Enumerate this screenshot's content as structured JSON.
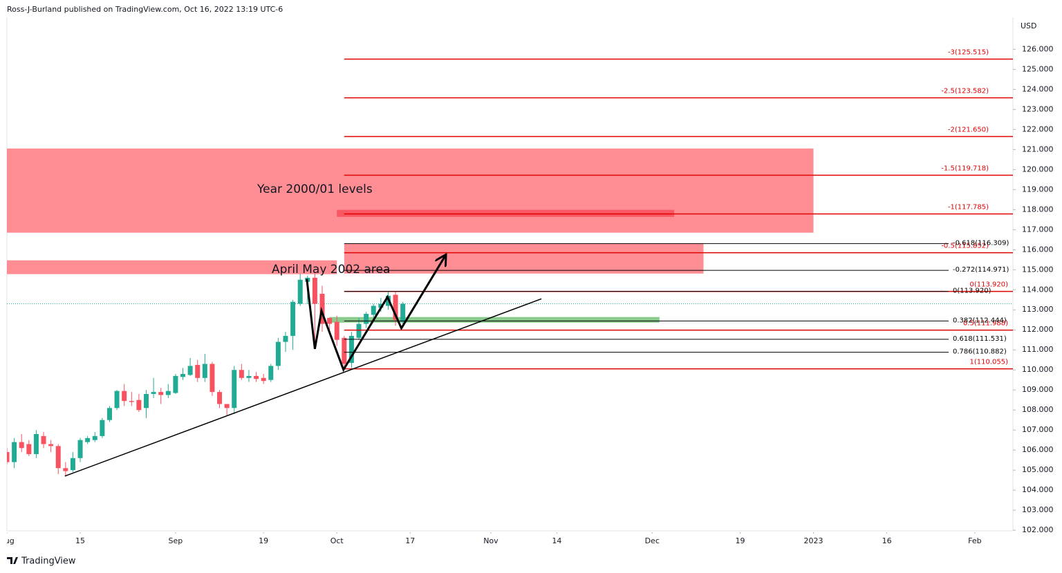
{
  "chart_data": {
    "type": "candlestick",
    "header": "Ross-J-Burland published on TradingView.com, Oct 16, 2022 13:19 UTC-6",
    "currency": "USD",
    "brand": "TradingView",
    "annotations": [
      "Year 2000/01 levels",
      "April May 2002 area"
    ],
    "up_color": "#22ab94",
    "down_color": "#f7525f",
    "categories": [
      null,
      null,
      null,
      null,
      null,
      null,
      null,
      null,
      null,
      null,
      null,
      null,
      null,
      null,
      null,
      null,
      null,
      null,
      null,
      null,
      null,
      null,
      null,
      null,
      null,
      null,
      null,
      null,
      null,
      null,
      null,
      null,
      null,
      null,
      null,
      null,
      null,
      null,
      null,
      null,
      null,
      null,
      null,
      null,
      null,
      null,
      null,
      null,
      null,
      null,
      null,
      null,
      null,
      null,
      null
    ],
    "open": [
      105.9,
      105.4,
      106.4,
      106.3,
      105.8,
      106.7,
      106.3,
      106.2,
      105.1,
      105.0,
      105.6,
      106.4,
      106.5,
      106.7,
      107.5,
      108.1,
      108.95,
      108.45,
      108.5,
      108.1,
      108.8,
      108.9,
      108.75,
      108.85,
      109.65,
      109.75,
      110.25,
      109.6,
      110.3,
      108.9,
      108.3,
      108.1,
      110.0,
      109.6,
      109.7,
      109.6,
      109.5,
      110.2,
      111.4,
      111.7,
      113.3,
      114.4,
      114.6,
      113.8,
      112.6,
      112.4,
      111.6,
      110.35,
      111.6,
      112.3,
      112.75,
      113.1,
      113.2,
      113.75,
      112.4
    ],
    "high": [
      106.1,
      106.6,
      106.8,
      106.5,
      107.0,
      106.9,
      106.5,
      106.3,
      105.4,
      105.9,
      106.6,
      106.7,
      106.9,
      107.6,
      108.2,
      109.0,
      109.3,
      108.9,
      108.8,
      109.0,
      109.6,
      109.1,
      109.3,
      109.8,
      110.1,
      110.6,
      110.5,
      110.8,
      110.4,
      109.0,
      108.3,
      110.2,
      110.3,
      110.0,
      109.9,
      109.8,
      110.3,
      111.6,
      111.9,
      113.5,
      114.8,
      114.7,
      114.8,
      114.2,
      112.6,
      112.7,
      111.7,
      111.9,
      112.6,
      112.9,
      113.3,
      113.6,
      113.9,
      113.9,
      113.4
    ],
    "low": [
      105.3,
      105.1,
      105.9,
      105.7,
      105.6,
      106.1,
      105.9,
      104.8,
      104.7,
      104.9,
      105.4,
      106.3,
      106.4,
      106.6,
      107.4,
      108.0,
      108.2,
      108.2,
      107.9,
      107.6,
      108.6,
      108.3,
      108.6,
      108.8,
      109.5,
      109.7,
      109.4,
      109.4,
      108.7,
      108.1,
      107.7,
      107.8,
      109.5,
      109.4,
      109.4,
      109.3,
      109.4,
      110.0,
      110.9,
      111.0,
      113.2,
      113.3,
      111.2,
      111.9,
      111.9,
      111.2,
      110.0,
      110.1,
      111.5,
      112.1,
      112.5,
      112.9,
      113.0,
      112.2,
      112.3
    ],
    "close": [
      105.4,
      106.4,
      106.1,
      105.8,
      106.8,
      106.3,
      106.2,
      105.1,
      104.95,
      105.6,
      106.5,
      106.6,
      106.7,
      107.5,
      108.1,
      108.95,
      108.45,
      108.4,
      108.0,
      108.8,
      108.9,
      108.75,
      108.95,
      109.7,
      109.8,
      110.2,
      109.6,
      110.3,
      108.9,
      108.3,
      108.1,
      110.0,
      109.6,
      109.7,
      109.55,
      109.45,
      110.2,
      111.4,
      111.7,
      113.4,
      114.5,
      114.6,
      113.3,
      112.3,
      112.3,
      111.5,
      110.3,
      111.7,
      112.3,
      112.8,
      113.2,
      113.3,
      113.7,
      112.5,
      113.3
    ],
    "price_line": 113.3,
    "xlim": [
      0,
      137.2
    ],
    "ylim": [
      101.97,
      127.6
    ],
    "xticks": [
      {
        "value": 0,
        "label": "Aug"
      },
      {
        "value": 10,
        "label": "15"
      },
      {
        "value": 23,
        "label": "Sep"
      },
      {
        "value": 35,
        "label": "19"
      },
      {
        "value": 45,
        "label": "Oct"
      },
      {
        "value": 55,
        "label": "17"
      },
      {
        "value": 66,
        "label": "Nov"
      },
      {
        "value": 75,
        "label": "14"
      },
      {
        "value": 88,
        "label": "Dec"
      },
      {
        "value": 100,
        "label": "19"
      },
      {
        "value": 110,
        "label": "2023"
      },
      {
        "value": 120,
        "label": "16"
      },
      {
        "value": 132,
        "label": "Feb"
      }
    ],
    "yticks": [
      {
        "value": 102,
        "label": "102.000"
      },
      {
        "value": 103,
        "label": "103.000"
      },
      {
        "value": 104,
        "label": "104.000"
      },
      {
        "value": 105,
        "label": "105.000"
      },
      {
        "value": 106,
        "label": "106.000"
      },
      {
        "value": 107,
        "label": "107.000"
      },
      {
        "value": 108,
        "label": "108.000"
      },
      {
        "value": 109,
        "label": "109.000"
      },
      {
        "value": 110,
        "label": "110.000"
      },
      {
        "value": 111,
        "label": "111.000"
      },
      {
        "value": 112,
        "label": "112.000"
      },
      {
        "value": 113,
        "label": "113.000"
      },
      {
        "value": 114,
        "label": "114.000"
      },
      {
        "value": 115,
        "label": "115.000"
      },
      {
        "value": 116,
        "label": "116.000"
      },
      {
        "value": 117,
        "label": "117.000"
      },
      {
        "value": 118,
        "label": "118.000"
      },
      {
        "value": 119,
        "label": "119.000"
      },
      {
        "value": 120,
        "label": "120.000"
      },
      {
        "value": 121,
        "label": "121.000"
      },
      {
        "value": 122,
        "label": "122.000"
      },
      {
        "value": 123,
        "label": "123.000"
      },
      {
        "value": 124,
        "label": "124.000"
      },
      {
        "value": 125,
        "label": "125.000"
      },
      {
        "value": 126,
        "label": "126.000"
      }
    ],
    "zones": [
      {
        "x": [
          0,
          110
        ],
        "y": [
          116.85,
          121.05
        ],
        "color": "#ff5c66",
        "opacity": 0.7
      },
      {
        "x": [
          0,
          45
        ],
        "y": [
          114.78,
          115.47
        ],
        "color": "#ff5c66",
        "opacity": 0.7
      },
      {
        "x": [
          46,
          95
        ],
        "y": [
          114.81,
          116.3
        ],
        "color": "#ff5c66",
        "opacity": 0.7
      },
      {
        "x": [
          45,
          91
        ],
        "y": [
          117.64,
          117.99
        ],
        "color": "#f23645",
        "opacity": 0.6
      },
      {
        "x": [
          44,
          89
        ],
        "y": [
          112.36,
          112.64
        ],
        "color": "#4caf50",
        "opacity": 0.65
      }
    ],
    "fib_levels": [
      {
        "value": 125.515,
        "label": "-3(125.515)",
        "color": "#e00000"
      },
      {
        "value": 123.582,
        "label": "-2.5(123.582)",
        "color": "#e00000"
      },
      {
        "value": 121.65,
        "label": "-2(121.650)",
        "color": "#e00000"
      },
      {
        "value": 119.718,
        "label": "-1.5(119.718)",
        "color": "#e00000"
      },
      {
        "value": 117.785,
        "label": "-1(117.785)",
        "color": "#e00000"
      },
      {
        "value": 115.852,
        "label": "-0.5(115.852)",
        "color": "#e00000"
      },
      {
        "value": 113.92,
        "label": "0(113.920)",
        "color": "#e00000"
      },
      {
        "value": 111.988,
        "label": "0.5(111.988)",
        "color": "#e00000"
      },
      {
        "value": 110.055,
        "label": "1(110.055)",
        "color": "#e00000"
      },
      {
        "value": 116.309,
        "label": "-0.618(116.309)",
        "color": "#000000"
      },
      {
        "value": 114.971,
        "label": "-0.272(114.971)",
        "color": "#000000"
      },
      {
        "value": 113.92,
        "label": "0(113.920)",
        "color": "#000000"
      },
      {
        "value": 112.444,
        "label": "0.382(112.444)",
        "color": "#000000"
      },
      {
        "value": 111.531,
        "label": "0.618(111.531)",
        "color": "#000000"
      },
      {
        "value": 110.882,
        "label": "0.786(110.882)",
        "color": "#000000"
      }
    ],
    "lines": [
      {
        "x": [
          7.9,
          72.9
        ],
        "y": [
          104.7,
          113.55
        ],
        "arrow": false
      },
      {
        "x": [
          40.9,
          42.0,
          42.9,
          45.9,
          51.9,
          53.8,
          59.8
        ],
        "y": [
          114.54,
          111.05,
          112.95,
          110.01,
          113.64,
          112.08,
          115.71
        ],
        "arrow": true
      }
    ]
  }
}
